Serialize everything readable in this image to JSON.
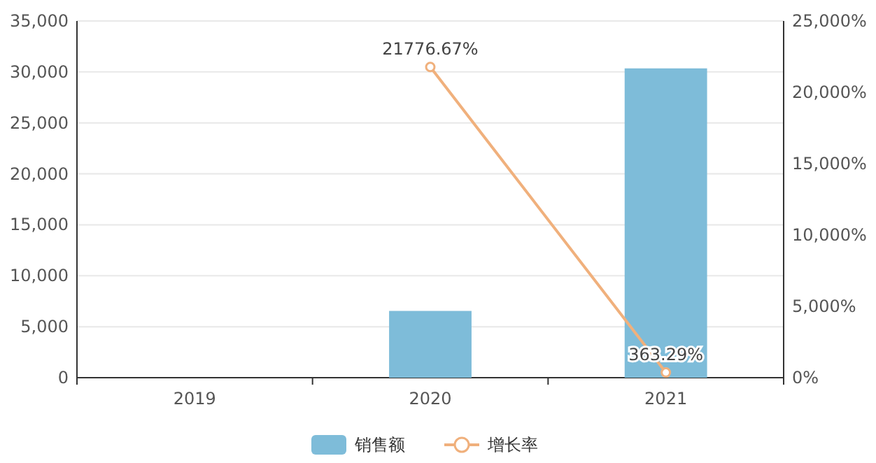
{
  "chart_data": {
    "type": "bar",
    "categories": [
      "2019",
      "2020",
      "2021"
    ],
    "series": [
      {
        "name": "销售额",
        "color": "#7ebcd9",
        "values": [
          0,
          6550,
          30350
        ]
      },
      {
        "name": "增长率",
        "type": "line",
        "axis": "y2",
        "color": "#f0b07c",
        "values": [
          null,
          21776.67,
          363.29
        ],
        "value_labels": [
          null,
          "21776.67%",
          "363.29%"
        ],
        "marker": "circle"
      }
    ],
    "ylim": [
      0,
      35000
    ],
    "yticks": [
      0,
      {
        "value": 5000,
        "label": "5,000"
      },
      {
        "value": 10000,
        "label": "10,000"
      },
      {
        "value": 15000,
        "label": "15,000"
      },
      {
        "value": 20000,
        "label": "20,000"
      },
      {
        "value": 25000,
        "label": "25,000"
      },
      {
        "value": 30000,
        "label": "30,000"
      },
      {
        "value": 35000,
        "label": "35,000"
      }
    ],
    "y2lim": [
      0,
      25000
    ],
    "y2ticks": [
      {
        "value": 0,
        "label": "0%"
      },
      {
        "value": 5000,
        "label": "5,000%"
      },
      {
        "value": 10000,
        "label": "10,000%"
      },
      {
        "value": 15000,
        "label": "15,000%"
      },
      {
        "value": 20000,
        "label": "20,000%"
      },
      {
        "value": 25000,
        "label": "25,000%"
      }
    ],
    "grid": "y",
    "legend": "bottom"
  }
}
